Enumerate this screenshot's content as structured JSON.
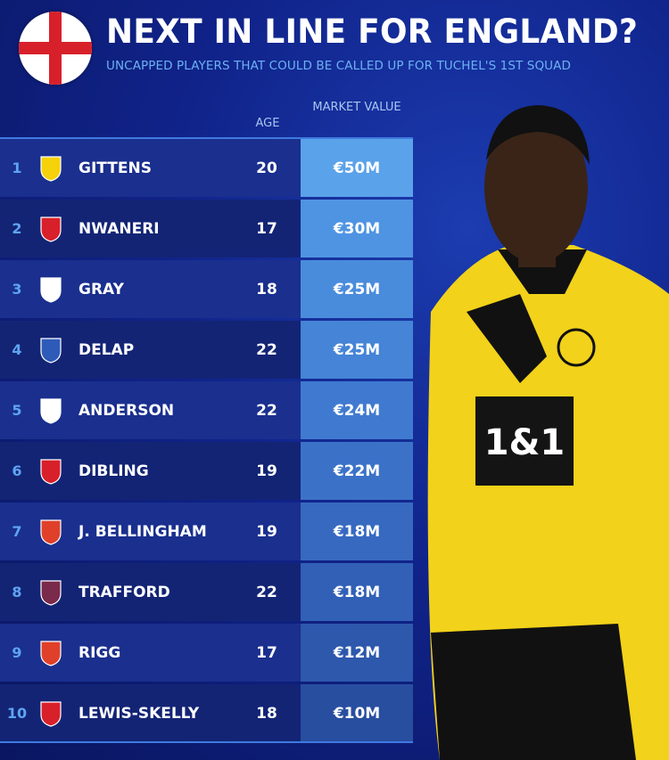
{
  "header": {
    "title": "NEXT IN LINE FOR ENGLAND?",
    "subtitle": "UNCAPPED PLAYERS THAT COULD BE CALLED UP FOR TUCHEL'S 1ST SQUAD",
    "flag_icon": "england-flag-icon"
  },
  "columns": {
    "age": "AGE",
    "market_value": "MARKET VALUE"
  },
  "colors": {
    "accent": "#5ea4f0",
    "band_a": "#1a2f8e",
    "band_b": "#132475",
    "flag_red": "#d8202a"
  },
  "players": [
    {
      "rank": "1",
      "club_icon": "dortmund-crest-icon",
      "club_color": "#f5d20a",
      "name": "GITTENS",
      "age": "20",
      "value": "€50M",
      "value_color": "#5aa2ea"
    },
    {
      "rank": "2",
      "club_icon": "arsenal-crest-icon",
      "club_color": "#d8202a",
      "name": "NWANERI",
      "age": "17",
      "value": "€30M",
      "value_color": "#4f94e2"
    },
    {
      "rank": "3",
      "club_icon": "tottenham-crest-icon",
      "club_color": "#ffffff",
      "name": "GRAY",
      "age": "18",
      "value": "€25M",
      "value_color": "#4a8cdc"
    },
    {
      "rank": "4",
      "club_icon": "ipswich-crest-icon",
      "club_color": "#2e5bb8",
      "name": "DELAP",
      "age": "22",
      "value": "€25M",
      "value_color": "#4584d6"
    },
    {
      "rank": "5",
      "club_icon": "nottingham-forest-crest-icon",
      "club_color": "#ffffff",
      "name": "ANDERSON",
      "age": "22",
      "value": "€24M",
      "value_color": "#407ad0"
    },
    {
      "rank": "6",
      "club_icon": "southampton-crest-icon",
      "club_color": "#d8202a",
      "name": "DIBLING",
      "age": "19",
      "value": "€22M",
      "value_color": "#3b72c8"
    },
    {
      "rank": "7",
      "club_icon": "sunderland-crest-icon",
      "club_color": "#e0402a",
      "name": "J. BELLINGHAM",
      "age": "19",
      "value": "€18M",
      "value_color": "#3769c0"
    },
    {
      "rank": "8",
      "club_icon": "burnley-crest-icon",
      "club_color": "#7a2a4a",
      "name": "TRAFFORD",
      "age": "22",
      "value": "€18M",
      "value_color": "#3260b6"
    },
    {
      "rank": "9",
      "club_icon": "sunderland-crest-icon",
      "club_color": "#e0402a",
      "name": "RIGG",
      "age": "17",
      "value": "€12M",
      "value_color": "#2d58ac"
    },
    {
      "rank": "10",
      "club_icon": "arsenal-crest-icon",
      "club_color": "#d8202a",
      "name": "LEWIS-SKELLY",
      "age": "18",
      "value": "€10M",
      "value_color": "#284ea0"
    }
  ],
  "photo": {
    "icon": "player-photo",
    "shirt_sponsor": "1&1"
  }
}
